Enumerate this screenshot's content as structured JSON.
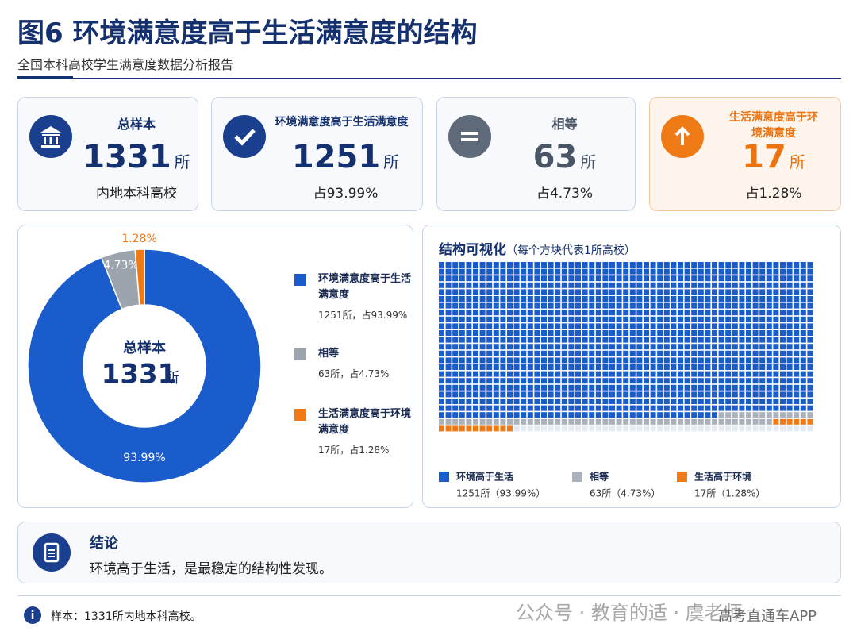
{
  "header": {
    "title": "图6 环境满意度高于生活满意度的结构",
    "subtitle": "全国本科高校学生满意度数据分析报告"
  },
  "cards": [
    {
      "label": "总样本",
      "value": 1331,
      "unit": "所",
      "note": "内地本科高校"
    },
    {
      "label": "环境满意度高于生活满意度",
      "value": 1251,
      "unit": "所",
      "note": "占93.99%"
    },
    {
      "label": "相等",
      "value": 63,
      "unit": "所",
      "note": "占4.73%"
    },
    {
      "label": "生活满意度高于环境满意度",
      "value": 17,
      "unit": "所",
      "note": "占1.28%"
    }
  ],
  "chart_data": [
    {
      "type": "pie",
      "center_label": "总样本",
      "center_value": 1331,
      "center_unit": "所",
      "categories": [
        "环境满意度高于生活满意度",
        "相等",
        "生活满意度高于环境满意度"
      ],
      "values": [
        93.99,
        4.73,
        1.28
      ],
      "value_labels": [
        "93.99%",
        "4.73%",
        "1.28%"
      ],
      "colors": [
        "#1a5ccc",
        "#9ca4ae",
        "#f07b16"
      ],
      "legend_notes": [
        "1251所，占93.99%",
        "63所，占4.73%",
        "17所，占1.28%"
      ]
    },
    {
      "type": "waffle",
      "title": "结构可视化",
      "subtitle": "（每个方块代表1所高校）",
      "categories": [
        "环境高于生活",
        "相等",
        "生活高于环境"
      ],
      "values": [
        1251,
        63,
        17
      ],
      "colors": [
        "#1a5ccc",
        "#aab1ba",
        "#f07b16"
      ],
      "legend_notes": [
        "1251所（93.99%）",
        "63所（4.73%）",
        "17所（1.28%）"
      ]
    }
  ],
  "conclusion": {
    "title": "结论",
    "text": "环境高于生活，是最稳定的结构性发现。"
  },
  "footnote": "样本：1331所内地本科高校。",
  "watermark": {
    "account": "公众号 · 教育的适 · 虞老师",
    "app": "高考直通车APP"
  }
}
